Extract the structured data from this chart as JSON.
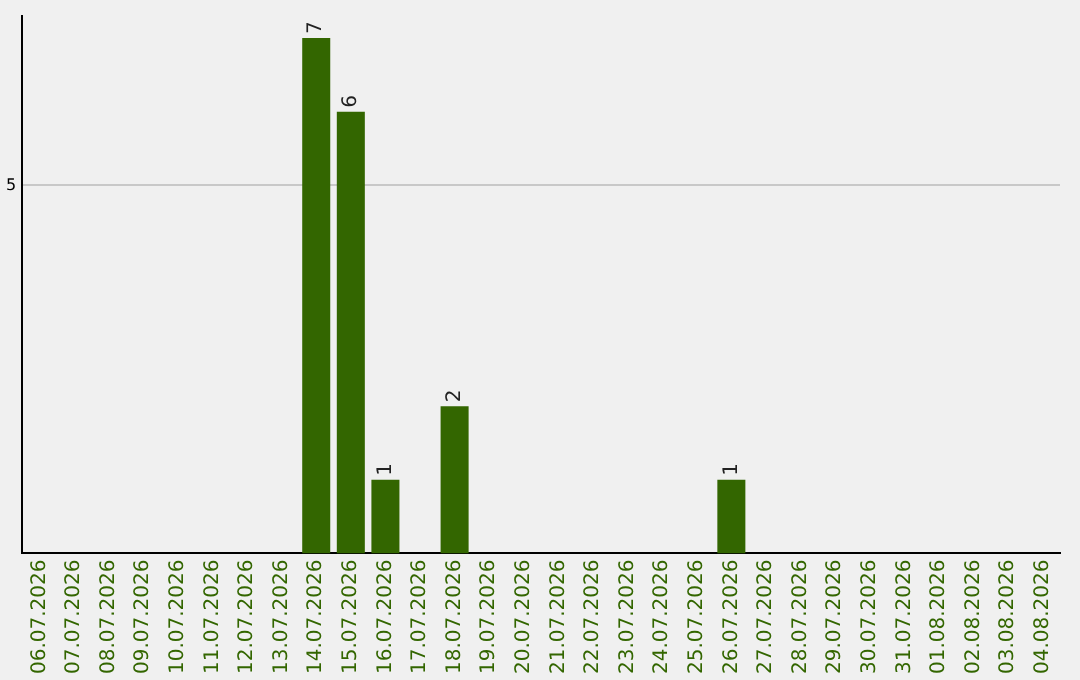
{
  "chart_data": {
    "type": "bar",
    "categories": [
      "06.07.2026",
      "07.07.2026",
      "08.07.2026",
      "09.07.2026",
      "10.07.2026",
      "11.07.2026",
      "12.07.2026",
      "13.07.2026",
      "14.07.2026",
      "15.07.2026",
      "16.07.2026",
      "17.07.2026",
      "18.07.2026",
      "19.07.2026",
      "20.07.2026",
      "21.07.2026",
      "22.07.2026",
      "23.07.2026",
      "24.07.2026",
      "25.07.2026",
      "26.07.2026",
      "27.07.2026",
      "28.07.2026",
      "29.07.2026",
      "30.07.2026",
      "31.07.2026",
      "01.08.2026",
      "02.08.2026",
      "03.08.2026",
      "04.08.2026"
    ],
    "values": [
      0,
      0,
      0,
      0,
      0,
      0,
      0,
      0,
      7,
      6,
      1,
      0,
      2,
      0,
      0,
      0,
      0,
      0,
      0,
      0,
      1,
      0,
      0,
      0,
      0,
      0,
      0,
      0,
      0,
      0
    ],
    "value_labels": [
      null,
      null,
      null,
      null,
      null,
      null,
      null,
      null,
      "7",
      "6",
      "1",
      null,
      "2",
      null,
      null,
      null,
      null,
      null,
      null,
      null,
      "1",
      null,
      null,
      null,
      null,
      null,
      null,
      null,
      null,
      null
    ],
    "color": "#336600",
    "ylim": [
      0,
      7.3
    ],
    "yticks": [
      5
    ],
    "grid": "y",
    "legend": false
  }
}
